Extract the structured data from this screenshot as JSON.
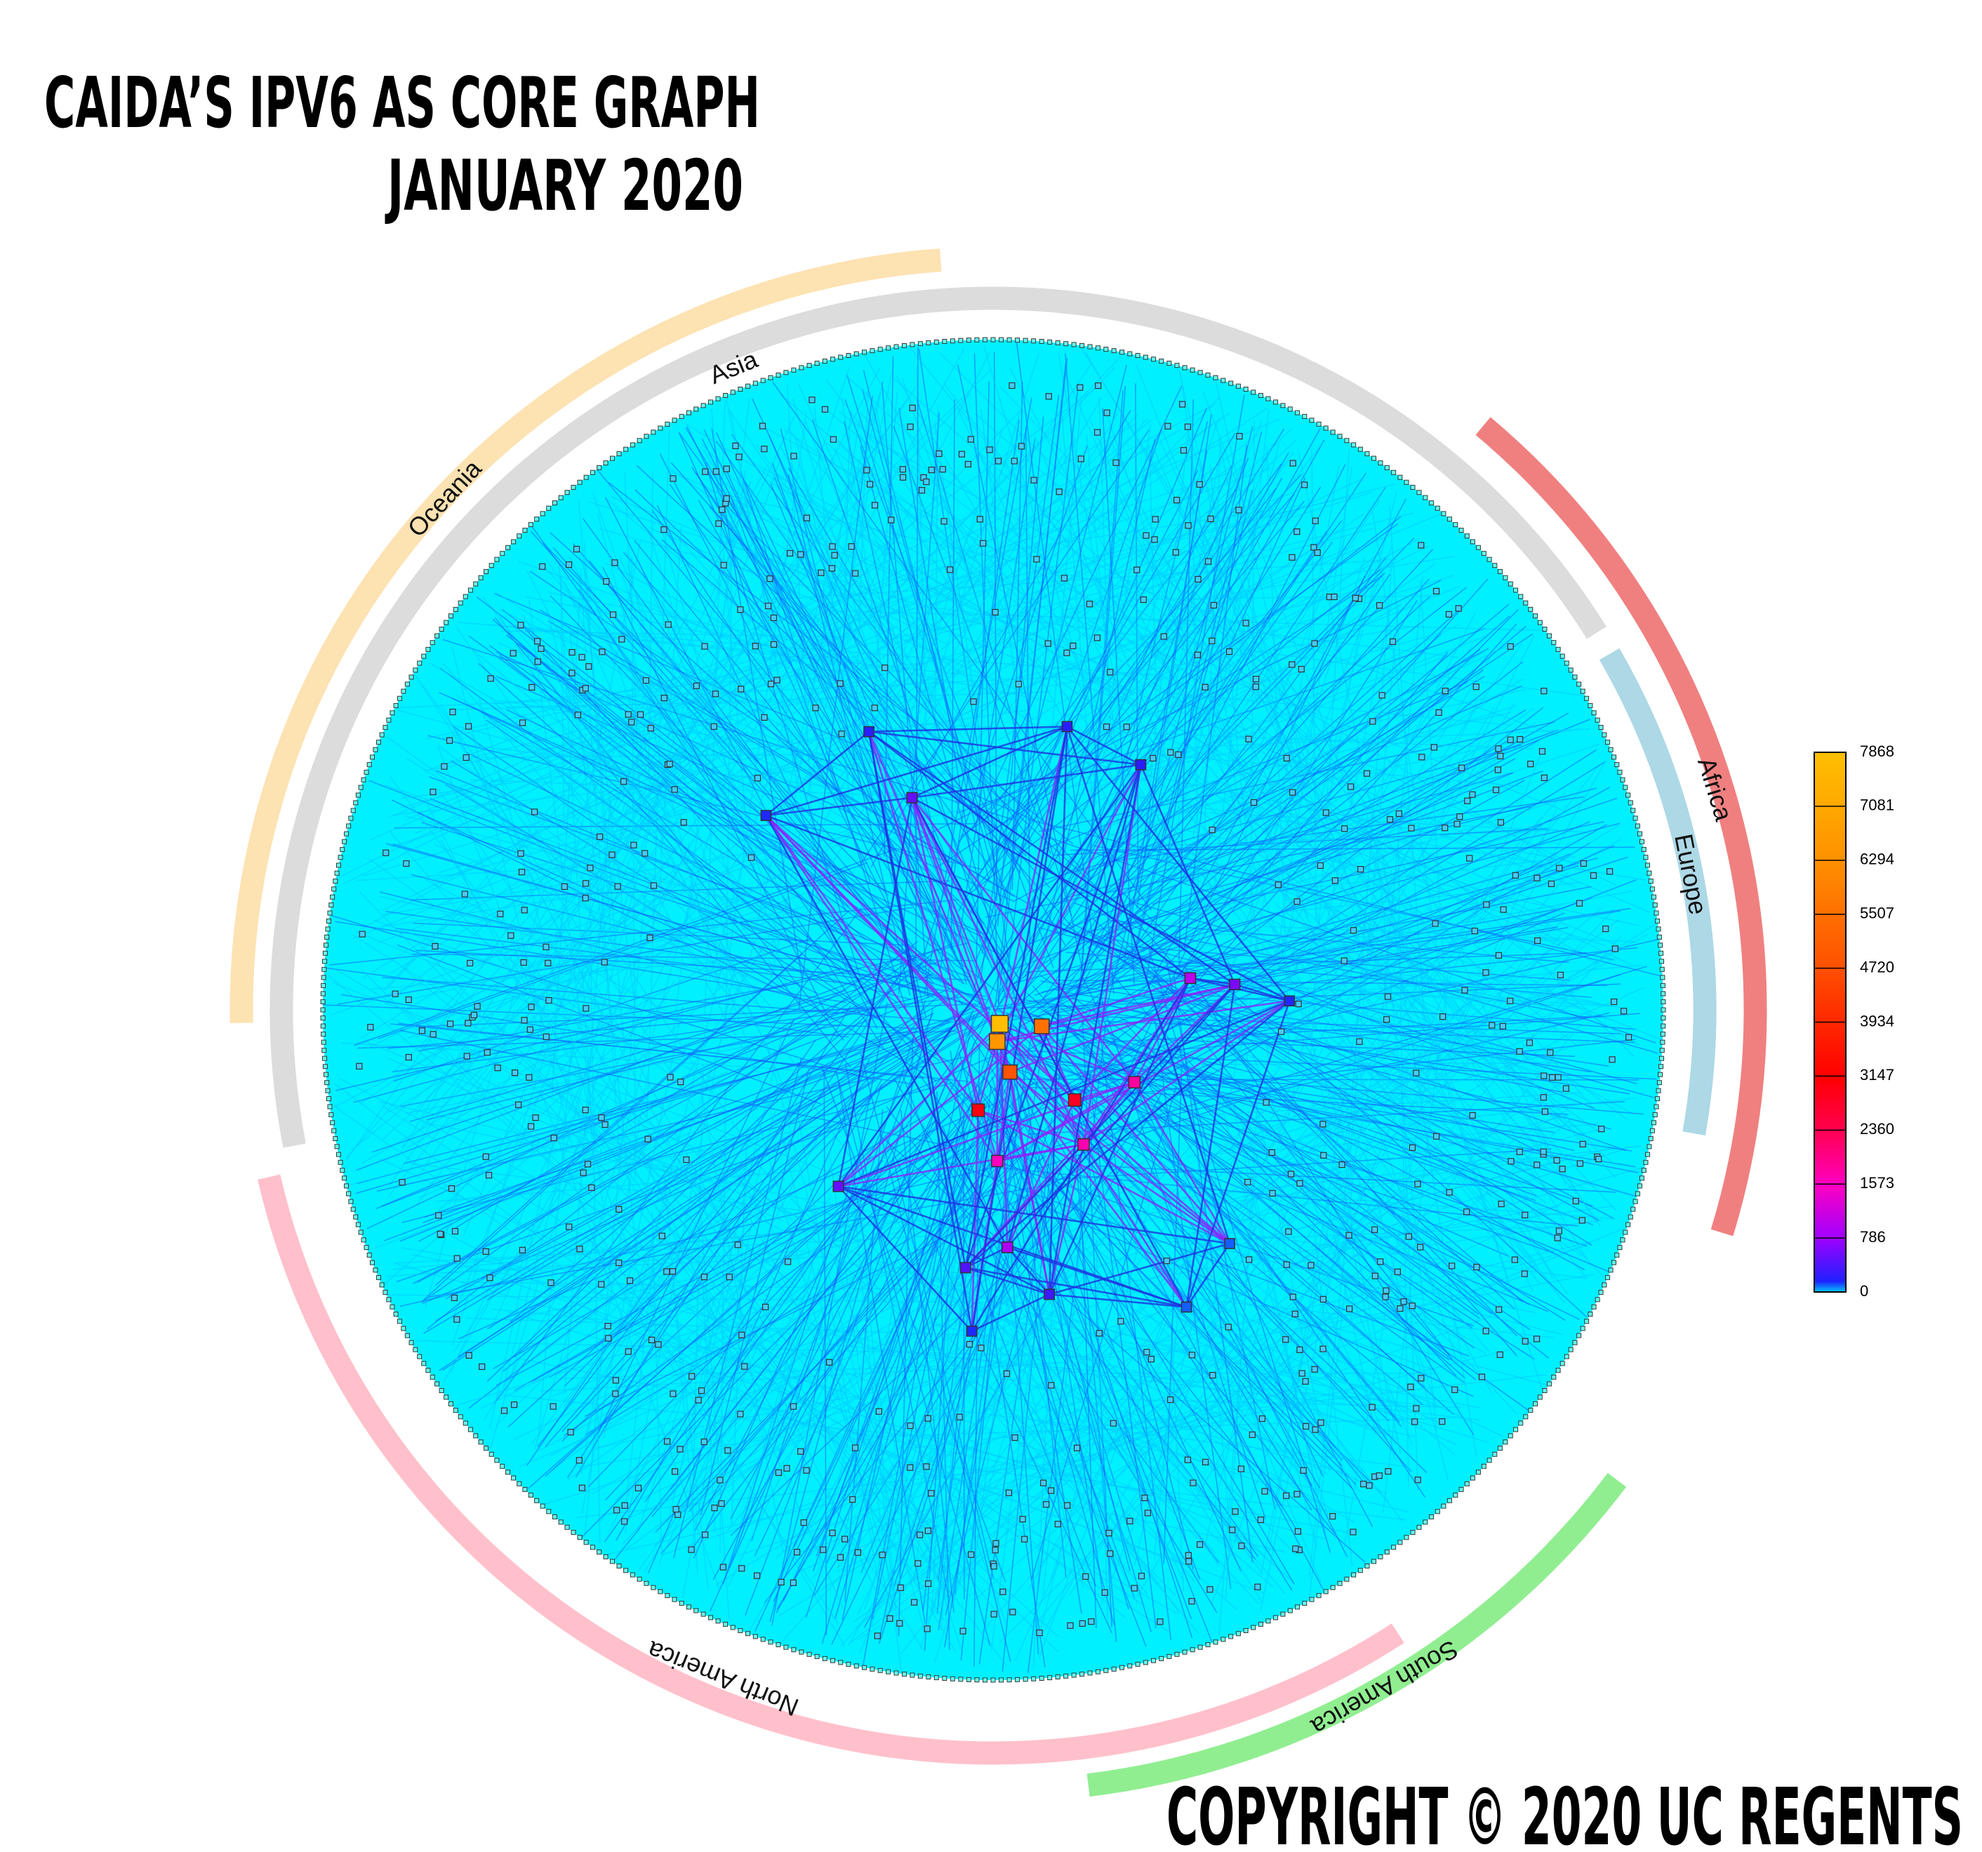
{
  "title": {
    "line1": "CAIDA’S IPV6 AS CORE GRAPH",
    "line2": "JANUARY 2020"
  },
  "regions": [
    {
      "label": "Asia",
      "color": "#dcdcdc"
    },
    {
      "label": "Europe",
      "color": "#add8e6"
    },
    {
      "label": "Oceania",
      "color": "#fde2b2"
    },
    {
      "label": "Africa",
      "color": "#f08080"
    },
    {
      "label": "North America",
      "color": "#ffc0cb"
    },
    {
      "label": "South America",
      "color": "#90ee90"
    }
  ],
  "colorbar": {
    "lim": [
      0,
      7868
    ],
    "ticks": [
      0,
      786,
      1573,
      2360,
      3147,
      3934,
      4720,
      5507,
      6294,
      7081,
      7868
    ]
  },
  "hubs": [
    7800,
    6500,
    5500,
    4800,
    3000,
    2800,
    1800,
    1700,
    1600,
    1000,
    600,
    500,
    500,
    900,
    400,
    200,
    200,
    150,
    200,
    150,
    100,
    100,
    300,
    150
  ],
  "copyright": "COPYRIGHT © 2020 UC REGENTS"
}
